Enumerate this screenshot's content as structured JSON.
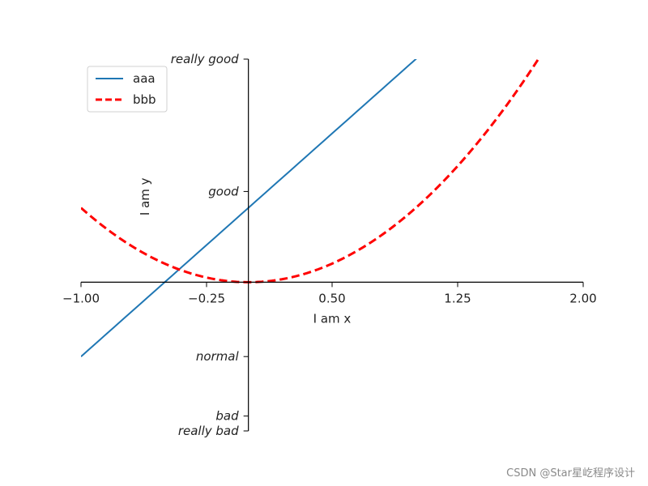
{
  "chart_data": {
    "type": "line",
    "xlabel": "I am x",
    "ylabel": "I am y",
    "xlim": [
      -1,
      2
    ],
    "ylim": [
      -2,
      3
    ],
    "xticks": [
      {
        "value": -1.0,
        "label": "−1.00"
      },
      {
        "value": -0.25,
        "label": "−0.25"
      },
      {
        "value": 0.5,
        "label": "0.50"
      },
      {
        "value": 1.25,
        "label": "1.25"
      },
      {
        "value": 2.0,
        "label": "2.00"
      }
    ],
    "yticks": [
      {
        "value": -2,
        "label": "really bad"
      },
      {
        "value": -1.8,
        "label": "bad"
      },
      {
        "value": -1,
        "label": "normal"
      },
      {
        "value": 1.22,
        "label": "good"
      },
      {
        "value": 3,
        "label": "really good"
      }
    ],
    "spines": "centered at origin (left and bottom only)",
    "legend_position": "upper-left",
    "series": [
      {
        "name": "aaa",
        "color": "#1f77b4",
        "style": "solid",
        "function": "y = 2x + 1",
        "x": [
          -1.0,
          -0.5,
          0.0,
          0.5,
          1.0
        ],
        "y": [
          -1.0,
          0.0,
          1.0,
          2.0,
          3.0
        ]
      },
      {
        "name": "bbb",
        "color": "#ff0000",
        "style": "dashed",
        "function": "y = x^2",
        "x": [
          -1.0,
          -0.5,
          0.0,
          0.5,
          1.0,
          1.5,
          1.73
        ],
        "y": [
          1.0,
          0.25,
          0.0,
          0.25,
          1.0,
          2.25,
          3.0
        ]
      }
    ]
  },
  "watermark": "CSDN @Star星屹程序设计"
}
